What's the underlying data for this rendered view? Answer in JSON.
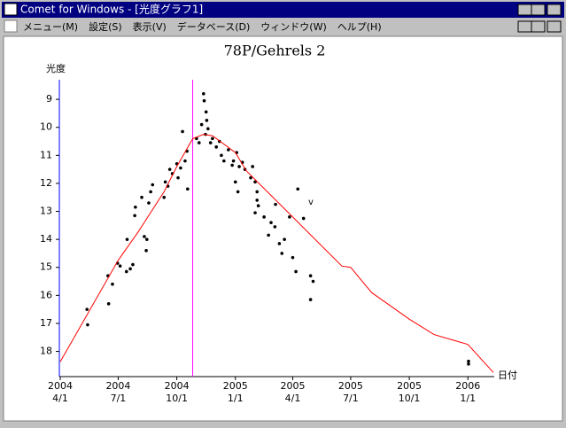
{
  "window": {
    "title": "Comet for Windows - [光度グラフ1]",
    "menu": [
      "メニュー(M)",
      "設定(S)",
      "表示(V)",
      "データベース(D)",
      "ウィンドウ(W)",
      "ヘルプ(H)"
    ]
  },
  "chart_data": {
    "type": "scatter",
    "title": "78P/Gehrels 2",
    "y_label": "光度",
    "x_label": "日付",
    "annotation": "v",
    "xlim": [
      "2004-04-01",
      "2006-02-10"
    ],
    "ylim": [
      18.9,
      8.3
    ],
    "yticks": [
      9,
      10,
      11,
      12,
      13,
      14,
      15,
      16,
      17,
      18
    ],
    "xticks": [
      {
        "value": "2004-04-01",
        "year": "2004",
        "label": "4/1"
      },
      {
        "value": "2004-07-01",
        "year": "2004",
        "label": "7/1"
      },
      {
        "value": "2004-10-01",
        "year": "2004",
        "label": "10/1"
      },
      {
        "value": "2005-01-01",
        "year": "2005",
        "label": "1/1"
      },
      {
        "value": "2005-04-01",
        "year": "2005",
        "label": "4/1"
      },
      {
        "value": "2005-07-01",
        "year": "2005",
        "label": "7/1"
      },
      {
        "value": "2005-10-01",
        "year": "2005",
        "label": "10/1"
      },
      {
        "value": "2006-01-01",
        "year": "2006",
        "label": "1/1"
      }
    ],
    "vline": {
      "x": "2004-10-26",
      "color": "#ff00ff"
    },
    "series": [
      {
        "type": "scatter",
        "color": "#000000",
        "x": [
          "2004-05-14",
          "2004-05-13",
          "2004-06-16",
          "2004-06-15",
          "2004-06-22",
          "2004-06-30",
          "2004-07-04",
          "2004-07-14",
          "2004-07-20",
          "2004-07-24",
          "2004-07-15",
          "2004-07-27",
          "2004-07-28",
          "2004-08-07",
          "2004-08-11",
          "2004-08-15",
          "2004-08-14",
          "2004-08-18",
          "2004-08-21",
          "2004-08-24",
          "2004-09-11",
          "2004-09-13",
          "2004-09-17",
          "2004-09-20",
          "2004-09-24",
          "2004-10-01",
          "2004-10-03",
          "2004-10-07",
          "2004-10-10",
          "2004-10-14",
          "2004-10-18",
          "2004-10-17",
          "2004-11-01",
          "2004-11-05",
          "2004-11-09",
          "2004-11-12",
          "2004-11-13",
          "2004-11-16",
          "2004-11-19",
          "2004-11-15",
          "2004-11-17",
          "2004-11-23",
          "2004-11-26",
          "2004-12-02",
          "2004-12-07",
          "2004-12-10",
          "2004-12-14",
          "2004-12-21",
          "2004-12-27",
          "2004-12-29",
          "2005-01-07",
          "2005-01-03",
          "2005-01-12",
          "2005-01-16",
          "2005-01-01",
          "2005-01-05",
          "2005-01-25",
          "2005-01-28",
          "2005-02-01",
          "2005-02-04",
          "2005-02-04",
          "2005-02-06",
          "2005-02-01",
          "2005-02-15",
          "2005-02-22",
          "2005-02-26",
          "2005-03-05",
          "2005-03-04",
          "2005-03-11",
          "2005-03-15",
          "2005-03-19",
          "2005-03-27",
          "2005-04-01",
          "2005-04-06",
          "2005-04-09",
          "2005-04-18",
          "2005-04-29",
          "2005-04-29",
          "2005-05-03",
          "2006-01-02",
          "2006-01-02"
        ],
        "values": [
          17.05,
          16.5,
          16.3,
          15.3,
          15.6,
          14.85,
          14.95,
          15.15,
          15.05,
          14.9,
          14.0,
          13.15,
          12.85,
          12.5,
          13.9,
          14.0,
          14.4,
          12.7,
          12.3,
          12.05,
          12.5,
          11.95,
          12.1,
          11.5,
          11.65,
          11.3,
          11.8,
          11.45,
          10.15,
          11.2,
          12.2,
          10.85,
          10.4,
          10.55,
          9.9,
          8.8,
          9.05,
          9.45,
          10.05,
          10.25,
          9.75,
          10.55,
          10.4,
          10.7,
          10.5,
          11.0,
          11.2,
          10.8,
          11.35,
          11.2,
          11.4,
          10.9,
          11.25,
          11.5,
          11.95,
          12.3,
          11.8,
          11.4,
          11.95,
          12.3,
          12.6,
          12.8,
          13.05,
          13.2,
          13.85,
          13.4,
          12.75,
          13.55,
          14.15,
          14.5,
          14.0,
          13.2,
          14.65,
          15.15,
          12.2,
          13.25,
          16.15,
          15.3,
          15.5,
          18.35,
          18.45
        ]
      },
      {
        "type": "line",
        "color": "#ff0000",
        "x": [
          "2004-04-01",
          "2004-07-01",
          "2004-08-01",
          "2004-09-11",
          "2004-10-01",
          "2004-10-26",
          "2004-11-12",
          "2004-11-26",
          "2005-01-01",
          "2005-01-18",
          "2005-04-01",
          "2005-06-17",
          "2005-07-01",
          "2005-08-03",
          "2005-10-01",
          "2005-11-09",
          "2006-01-01",
          "2006-02-10"
        ],
        "values": [
          18.37,
          14.75,
          13.75,
          12.3,
          11.4,
          10.4,
          10.25,
          10.3,
          10.9,
          11.55,
          13.2,
          14.95,
          15.0,
          15.9,
          16.85,
          17.4,
          17.75,
          18.75
        ]
      }
    ]
  }
}
